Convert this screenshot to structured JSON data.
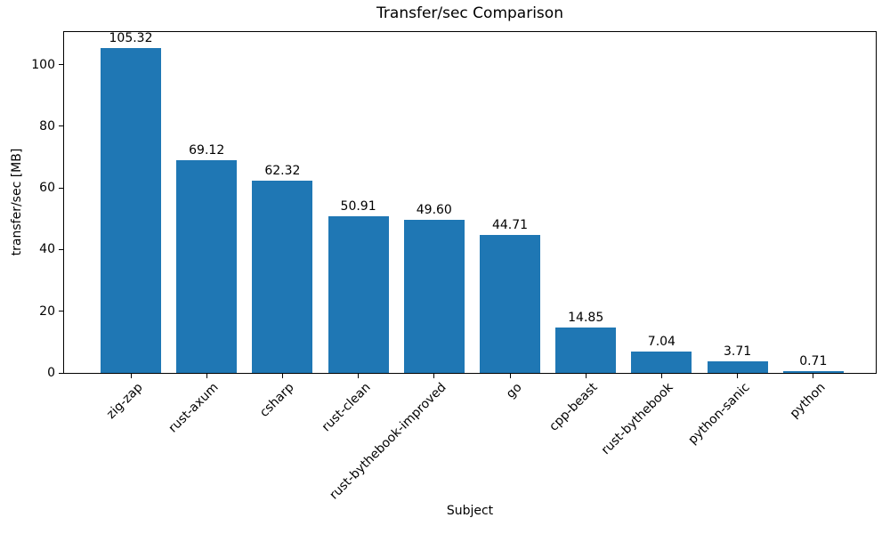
{
  "chart_data": {
    "type": "bar",
    "title": "Transfer/sec Comparison",
    "xlabel": "Subject",
    "ylabel": "transfer/sec [MB]",
    "categories": [
      "zig-zap",
      "rust-axum",
      "csharp",
      "rust-clean",
      "rust-bythebook-improved",
      "go",
      "cpp-beast",
      "rust-bythebook",
      "python-sanic",
      "python"
    ],
    "values": [
      105.32,
      69.12,
      62.32,
      50.91,
      49.6,
      44.71,
      14.85,
      7.04,
      3.71,
      0.71
    ],
    "value_labels": [
      "105.32",
      "69.12",
      "62.32",
      "50.91",
      "49.60",
      "44.71",
      "14.85",
      "7.04",
      "3.71",
      "0.71"
    ],
    "yticks": [
      "0",
      "20",
      "40",
      "60",
      "80",
      "100"
    ],
    "ytick_values": [
      0,
      20,
      40,
      60,
      80,
      100
    ],
    "ylim": [
      0,
      110.6
    ],
    "grid": false,
    "legend": "none",
    "bar_color": "#1f77b4",
    "text_color": "#000000",
    "xtick_rotation_deg": 45
  }
}
